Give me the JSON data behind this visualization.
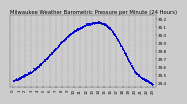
{
  "title": "Milwaukee Weather Barometric Pressure per Minute (24 Hours)",
  "title_fontsize": 3.8,
  "bg_color": "#cccccc",
  "plot_bg_color": "#cccccc",
  "line_color": "#0000cc",
  "grid_color": "#888888",
  "tick_label_fontsize": 3.0,
  "ylabel_fontsize": 3.0,
  "xlabel_fontsize": 2.8,
  "ylim": [
    29.35,
    30.25
  ],
  "yticks": [
    29.4,
    29.5,
    29.6,
    29.7,
    29.8,
    29.9,
    30.0,
    30.1,
    30.2
  ],
  "ytick_labels": [
    "29.4",
    "29.5",
    "29.6",
    "29.7",
    "29.8",
    "29.9",
    "30.0",
    "30.1",
    "30.2"
  ],
  "hours": [
    0,
    1,
    2,
    3,
    4,
    5,
    6,
    7,
    8,
    9,
    10,
    11,
    12,
    13,
    14,
    15,
    16,
    17,
    18,
    19,
    20,
    21,
    22,
    23
  ],
  "pressure": [
    29.43,
    29.46,
    29.5,
    29.54,
    29.6,
    29.67,
    29.75,
    29.83,
    29.92,
    29.99,
    30.05,
    30.09,
    30.13,
    30.15,
    30.16,
    30.14,
    30.08,
    29.97,
    29.83,
    29.68,
    29.54,
    29.47,
    29.43,
    29.38
  ],
  "xtick_labels": [
    "0",
    "1",
    "2",
    "3",
    "4",
    "5",
    "6",
    "7",
    "8",
    "9",
    "10",
    "11",
    "12",
    "13",
    "14",
    "15",
    "16",
    "17",
    "18",
    "19",
    "20",
    "21",
    "22",
    "23"
  ],
  "marker_size": 0.4,
  "noise_std": 0.006
}
